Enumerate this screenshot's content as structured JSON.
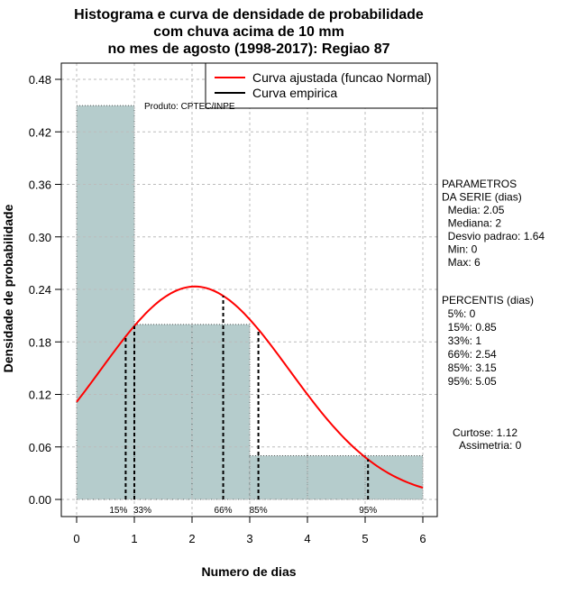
{
  "chart_data": {
    "type": "bar",
    "title": [
      "Histograma e curva de densidade de probabilidade",
      "com chuva acima de 10 mm",
      "no mes de agosto (1998-2017): Regiao 87"
    ],
    "xlabel": "Numero de dias",
    "ylabel": "Densidade de probabilidade",
    "xlim": [
      0,
      6
    ],
    "ylim": [
      0,
      0.48
    ],
    "xticks": [
      "0",
      "1",
      "2",
      "3",
      "4",
      "5",
      "6"
    ],
    "yticks": [
      "0.00",
      "0.06",
      "0.12",
      "0.18",
      "0.24",
      "0.30",
      "0.36",
      "0.42",
      "0.48"
    ],
    "bins": [
      [
        0,
        1
      ],
      [
        1,
        2
      ],
      [
        2,
        3
      ],
      [
        3,
        4
      ],
      [
        4,
        5
      ],
      [
        5,
        6
      ]
    ],
    "values": [
      0.45,
      0.2,
      0.2,
      0.05,
      0.05,
      0.05
    ],
    "bar_color": "#b5cccc",
    "curve": {
      "name": "Curva ajustada (funcao Normal)",
      "mean": 2.05,
      "sd": 1.64,
      "color": "#ff0000"
    },
    "legend": [
      {
        "label": "Curva ajustada (funcao Normal)",
        "color": "#ff0000"
      },
      {
        "label": "Curva empirica",
        "color": "#000000"
      }
    ],
    "legend_position": "top-right",
    "percentiles": [
      {
        "label": "15%",
        "x": 0.85
      },
      {
        "label": "33%",
        "x": 1
      },
      {
        "label": "66%",
        "x": 2.54
      },
      {
        "label": "85%",
        "x": 3.15
      },
      {
        "label": "95%",
        "x": 5.05
      }
    ],
    "annotation": "Produto: CPTEC/INPE",
    "grid": true
  },
  "side": {
    "params": [
      "PARAMETROS",
      "DA SERIE (dias)",
      "  Media: 2.05",
      "  Mediana: 2",
      "  Desvio padrao: 1.64",
      "  Min: 0",
      "  Max: 6"
    ],
    "percentis": [
      "PERCENTIS (dias)",
      "  5%: 0",
      "  15%: 0.85",
      "  33%: 1",
      "  66%: 2.54",
      "  85%: 3.15",
      "  95%: 5.05"
    ],
    "curtose": "Curtose: 1.12",
    "assimetria": "Assimetria: 0"
  }
}
